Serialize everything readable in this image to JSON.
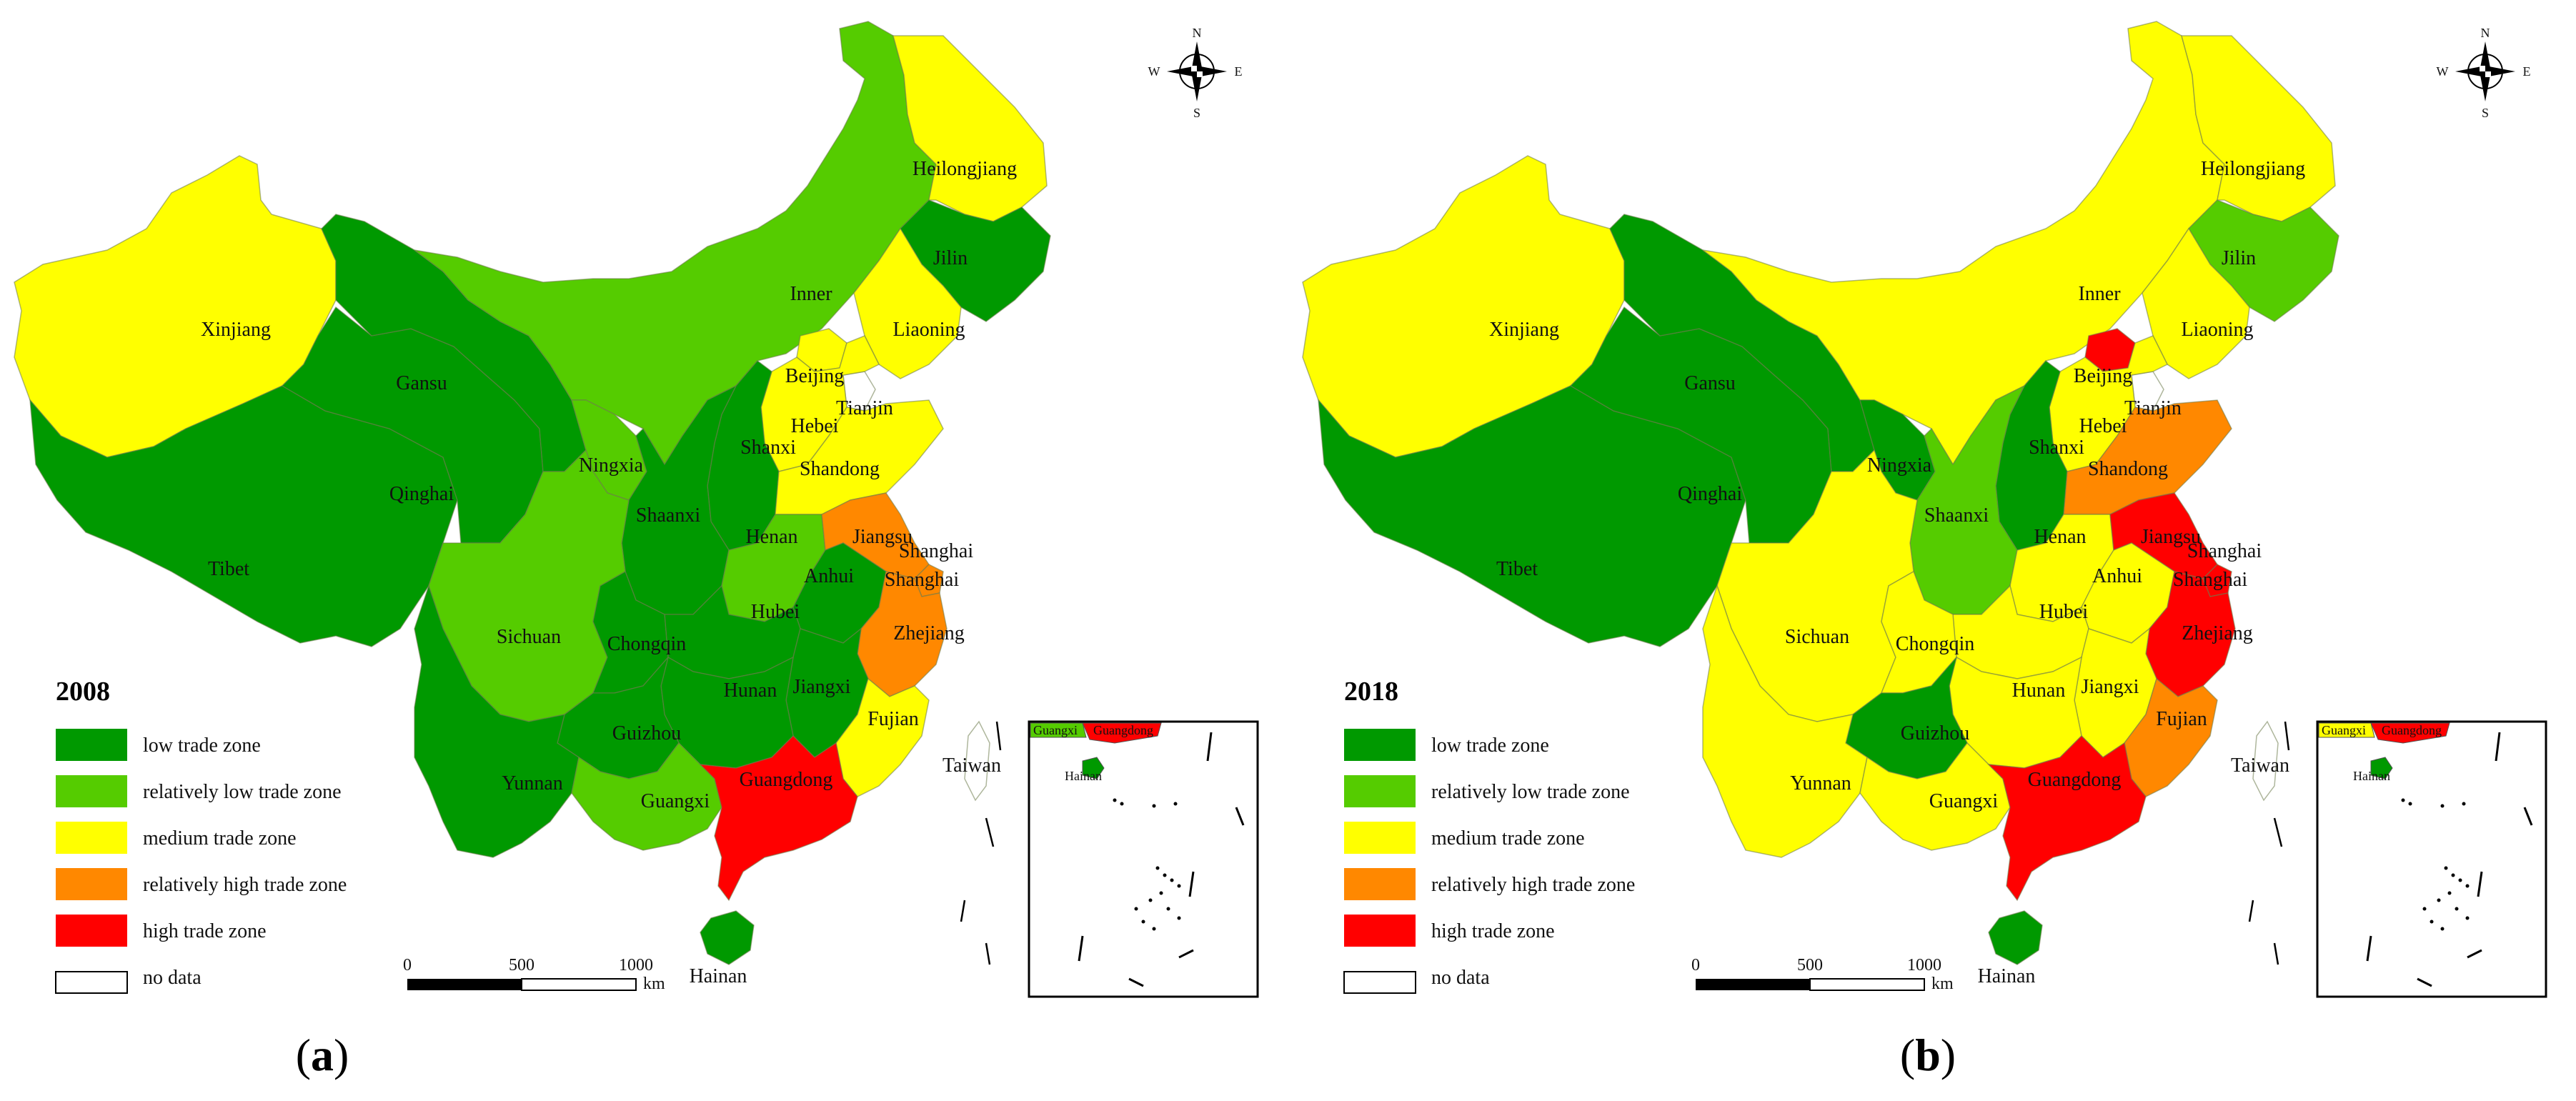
{
  "colors": {
    "low": "#009900",
    "relatively_low": "#55cc00",
    "medium": "#ffff00",
    "relatively_high": "#ff8800",
    "high": "#ff0000",
    "no_data": "#ffffff"
  },
  "legend": {
    "items": [
      {
        "key": "low",
        "label": "low trade zone"
      },
      {
        "key": "relatively_low",
        "label": "relatively low trade zone"
      },
      {
        "key": "medium",
        "label": "medium trade zone"
      },
      {
        "key": "relatively_high",
        "label": "relatively high trade zone"
      },
      {
        "key": "high",
        "label": "high trade zone"
      },
      {
        "key": "no_data",
        "label": "no data"
      }
    ]
  },
  "scale_bar": {
    "ticks": [
      "0",
      "500",
      "1000"
    ],
    "unit": "km"
  },
  "compass": {
    "n": "N",
    "s": "S",
    "e": "E",
    "w": "W"
  },
  "panels": [
    {
      "id": "a",
      "caption_letter": "a",
      "year": "2008",
      "zones": {
        "Xinjiang": "medium",
        "Tibet": "low",
        "Qinghai": "low",
        "Gansu": "low",
        "Inner": "relatively_low",
        "Heilongjiang": "medium",
        "Jilin": "low",
        "Liaoning": "medium",
        "Beijing": "medium",
        "Tianjin": "no_data",
        "Hebei": "medium",
        "Shanxi": "low",
        "Ningxia": "relatively_low",
        "Shaanxi": "low",
        "Shandong": "medium",
        "Henan": "relatively_low",
        "Jiangsu": "relatively_high",
        "Shanghai": "relatively_high",
        "Anhui": "low",
        "Hubei": "low",
        "Sichuan": "relatively_low",
        "Chongqin": "low",
        "Zhejiang": "relatively_high",
        "Jiangxi": "low",
        "Hunan": "low",
        "Guizhou": "low",
        "Fujian": "medium",
        "Yunnan": "low",
        "Guangxi": "relatively_low",
        "Guangdong": "high",
        "Hainan": "low",
        "Taiwan": "no_data"
      }
    },
    {
      "id": "b",
      "caption_letter": "b",
      "year": "2018",
      "zones": {
        "Xinjiang": "medium",
        "Tibet": "low",
        "Qinghai": "low",
        "Gansu": "low",
        "Inner": "medium",
        "Heilongjiang": "medium",
        "Jilin": "relatively_low",
        "Liaoning": "medium",
        "Beijing": "high",
        "Tianjin": "no_data",
        "Hebei": "medium",
        "Shanxi": "low",
        "Ningxia": "low",
        "Shaanxi": "relatively_low",
        "Shandong": "relatively_high",
        "Henan": "medium",
        "Jiangsu": "high",
        "Shanghai": "high",
        "Anhui": "medium",
        "Hubei": "medium",
        "Sichuan": "medium",
        "Chongqin": "medium",
        "Zhejiang": "high",
        "Jiangxi": "medium",
        "Hunan": "medium",
        "Guizhou": "low",
        "Fujian": "relatively_high",
        "Yunnan": "medium",
        "Guangxi": "medium",
        "Guangdong": "high",
        "Hainan": "low",
        "Taiwan": "no_data"
      }
    }
  ],
  "province_labels": {
    "Xinjiang": "Xinjiang",
    "Tibet": "Tibet",
    "Qinghai": "Qinghai",
    "Gansu": "Gansu",
    "Inner": "Inner",
    "Heilongjiang": "Heilongjiang",
    "Jilin": "Jilin",
    "Liaoning": "Liaoning",
    "Beijing": "Beijing",
    "Tianjin": "Tianjin",
    "Hebei": "Hebei",
    "Shanxi": "Shanxi",
    "Ningxia": "Ningxia",
    "Shaanxi": "Shaanxi",
    "Shandong": "Shandong",
    "Henan": "Henan",
    "Jiangsu": "Jiangsu",
    "Shanghai": "Shanghai",
    "Shanghai2": "Shanghai",
    "Anhui": "Anhui",
    "Hubei": "Hubei",
    "Sichuan": "Sichuan",
    "Chongqin": "Chongqin",
    "Zhejiang": "Zhejiang",
    "Jiangxi": "Jiangxi",
    "Hunan": "Hunan",
    "Guizhou": "Guizhou",
    "Fujian": "Fujian",
    "Yunnan": "Yunnan",
    "Guangxi": "Guangxi",
    "Guangdong": "Guangdong",
    "Hainan": "Hainan",
    "Taiwan": "Taiwan"
  },
  "inset_labels": {
    "guangxi": "Guangxi",
    "guangdong": "Guangdong",
    "hainan": "Hainan"
  }
}
